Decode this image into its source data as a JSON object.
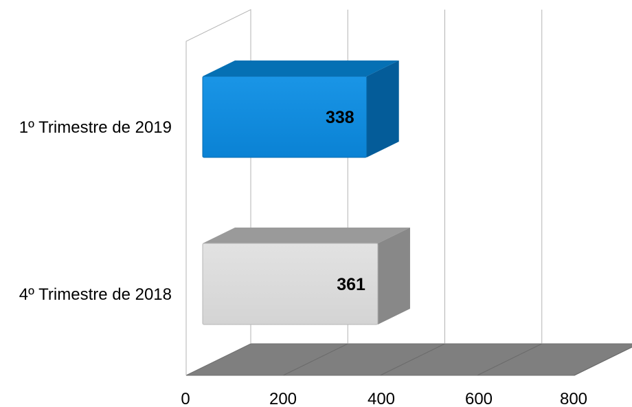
{
  "chart_data": {
    "type": "bar",
    "orientation": "horizontal",
    "three_d": true,
    "categories": [
      "1º Trimestre de 2019",
      "4º Trimestre de 2018"
    ],
    "values": [
      338,
      361
    ],
    "bar_colors": [
      "#0a86d8",
      "#d9d9d9"
    ],
    "data_labels": [
      "338",
      "361"
    ],
    "xlim": [
      0,
      800
    ],
    "x_ticks": [
      0,
      200,
      400,
      600,
      800
    ],
    "x_tick_labels": [
      "0",
      "200",
      "400",
      "600",
      "800"
    ],
    "grid": true,
    "floor_color": "#7f7f7f",
    "legend": "none"
  }
}
